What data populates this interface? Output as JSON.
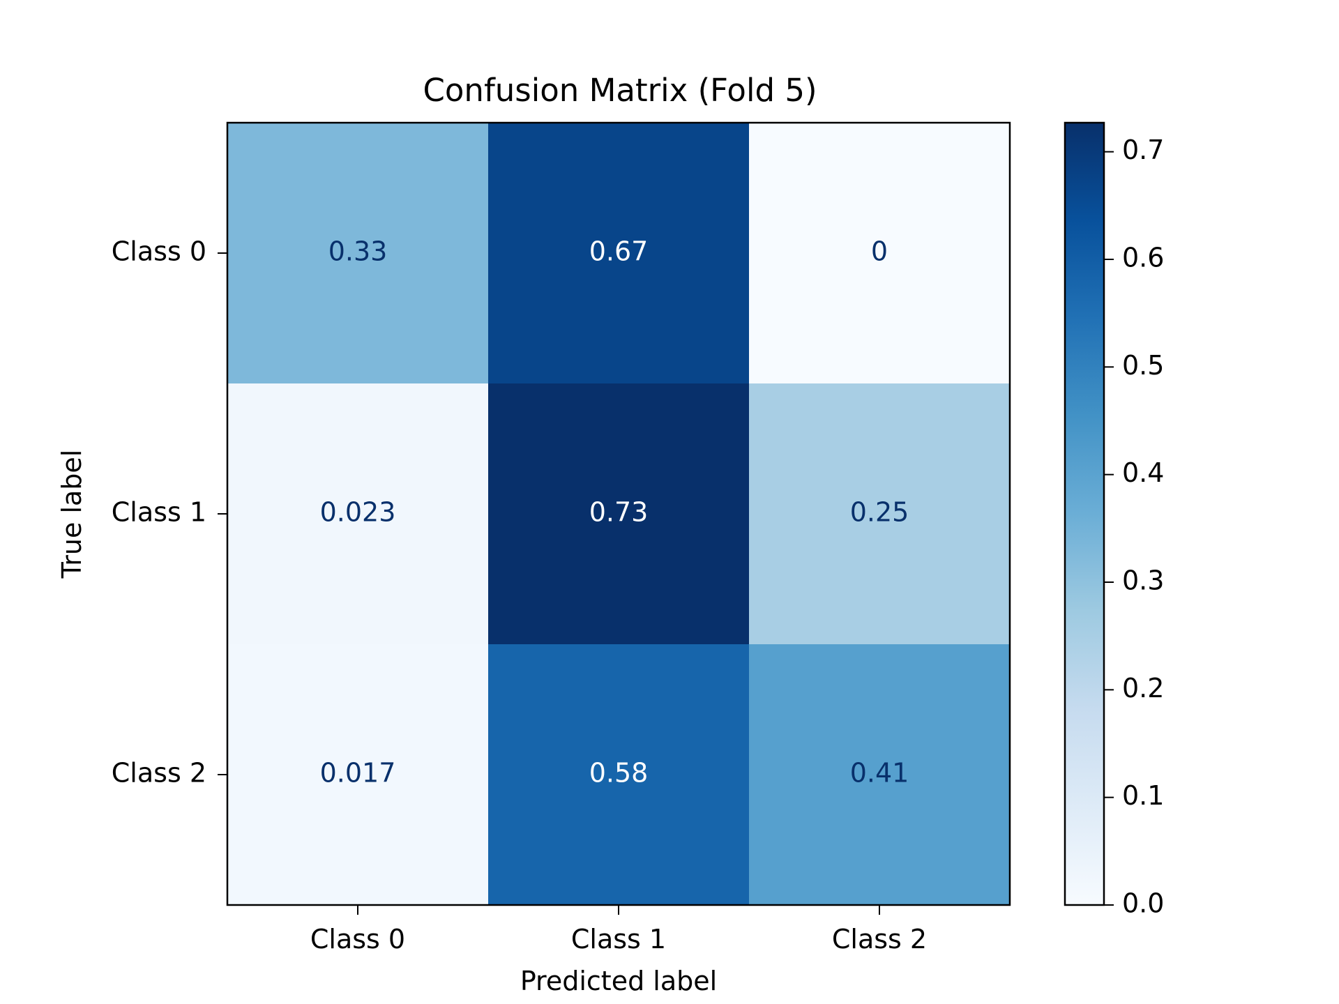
{
  "chart_data": {
    "type": "heatmap",
    "title": "Confusion Matrix (Fold 5)",
    "xlabel": "Predicted label",
    "ylabel": "True label",
    "x_categories": [
      "Class 0",
      "Class 1",
      "Class 2"
    ],
    "y_categories": [
      "Class 0",
      "Class 1",
      "Class 2"
    ],
    "values": [
      [
        0.33,
        0.67,
        0
      ],
      [
        0.023,
        0.73,
        0.25
      ],
      [
        0.017,
        0.58,
        0.41
      ]
    ],
    "value_labels": [
      [
        "0.33",
        "0.67",
        "0"
      ],
      [
        "0.023",
        "0.73",
        "0.25"
      ],
      [
        "0.017",
        "0.58",
        "0.41"
      ]
    ],
    "colorbar": {
      "colormap": "Blues",
      "vmin": 0.0,
      "vmax": 0.727,
      "ticks": [
        0.0,
        0.1,
        0.2,
        0.3,
        0.4,
        0.5,
        0.6,
        0.7
      ],
      "tick_labels": [
        "0.0",
        "0.1",
        "0.2",
        "0.3",
        "0.4",
        "0.5",
        "0.6",
        "0.7"
      ]
    },
    "colors": {
      "text_dark": "#08306b",
      "text_light": "#ffffff",
      "axes": "#000000"
    }
  }
}
